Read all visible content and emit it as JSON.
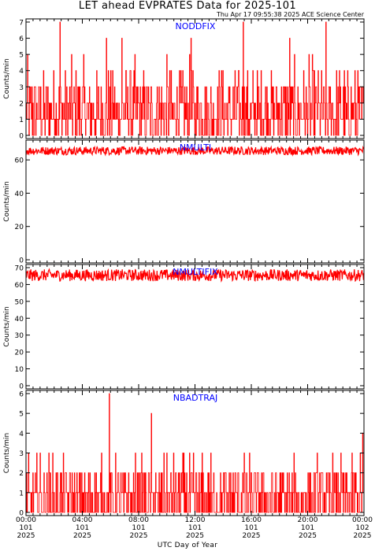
{
  "title": "LET ahead EVPRATES Data for 2025-101",
  "timestamp": "Thu Apr 17 09:55:38 2025 ACE Science Center",
  "x_axis": {
    "label": "UTC Day of Year",
    "ticks": [
      {
        "time": "00:00",
        "doy": "101",
        "year": "2025"
      },
      {
        "time": "04:00",
        "doy": "101",
        "year": "2025"
      },
      {
        "time": "08:00",
        "doy": "101",
        "year": "2025"
      },
      {
        "time": "12:00",
        "doy": "101",
        "year": "2025"
      },
      {
        "time": "16:00",
        "doy": "101",
        "year": "2025"
      },
      {
        "time": "20:00",
        "doy": "101",
        "year": "2025"
      },
      {
        "time": "00:00",
        "doy": "102",
        "year": "2025"
      }
    ]
  },
  "colors": {
    "series": "#ff0000",
    "panel_label": "#0000ff",
    "axes": "#000000"
  },
  "chart_data": [
    {
      "type": "line",
      "name": "NODDFIX",
      "ylabel": "Counts/min",
      "ylim": [
        0,
        7
      ],
      "yticks": [
        0,
        1,
        2,
        3,
        4,
        5,
        6,
        7
      ],
      "xlim": [
        0,
        24
      ],
      "typical_range": [
        0,
        4
      ],
      "spikes": [
        {
          "x": 2.4,
          "y": 7
        },
        {
          "x": 15.4,
          "y": 7
        },
        {
          "x": 21.3,
          "y": 7
        },
        {
          "x": 5.7,
          "y": 6
        },
        {
          "x": 6.8,
          "y": 6
        },
        {
          "x": 11.7,
          "y": 6
        },
        {
          "x": 18.7,
          "y": 6
        }
      ]
    },
    {
      "type": "line",
      "name": "NMULTI",
      "ylabel": "Counts/min",
      "ylim": [
        0,
        70
      ],
      "yticks": [
        0,
        20,
        40,
        60
      ],
      "xlim": [
        0,
        24
      ],
      "typical_range": [
        63,
        68
      ]
    },
    {
      "type": "line",
      "name": "NMULTIFIX",
      "ylabel": "Counts/min",
      "ylim": [
        0,
        70
      ],
      "yticks": [
        0,
        10,
        20,
        30,
        40,
        50,
        60,
        70
      ],
      "xlim": [
        0,
        24
      ],
      "typical_range": [
        62,
        69
      ]
    },
    {
      "type": "line",
      "name": "NBADTRAJ",
      "ylabel": "Counts/min",
      "ylim": [
        0,
        6
      ],
      "yticks": [
        0,
        1,
        2,
        3,
        4,
        5,
        6
      ],
      "xlim": [
        0,
        24
      ],
      "typical_range": [
        0,
        2
      ],
      "spikes": [
        {
          "x": 5.9,
          "y": 6
        },
        {
          "x": 8.9,
          "y": 5
        },
        {
          "x": 1.6,
          "y": 3
        },
        {
          "x": 13.1,
          "y": 3
        },
        {
          "x": 23.9,
          "y": 4
        }
      ]
    }
  ]
}
